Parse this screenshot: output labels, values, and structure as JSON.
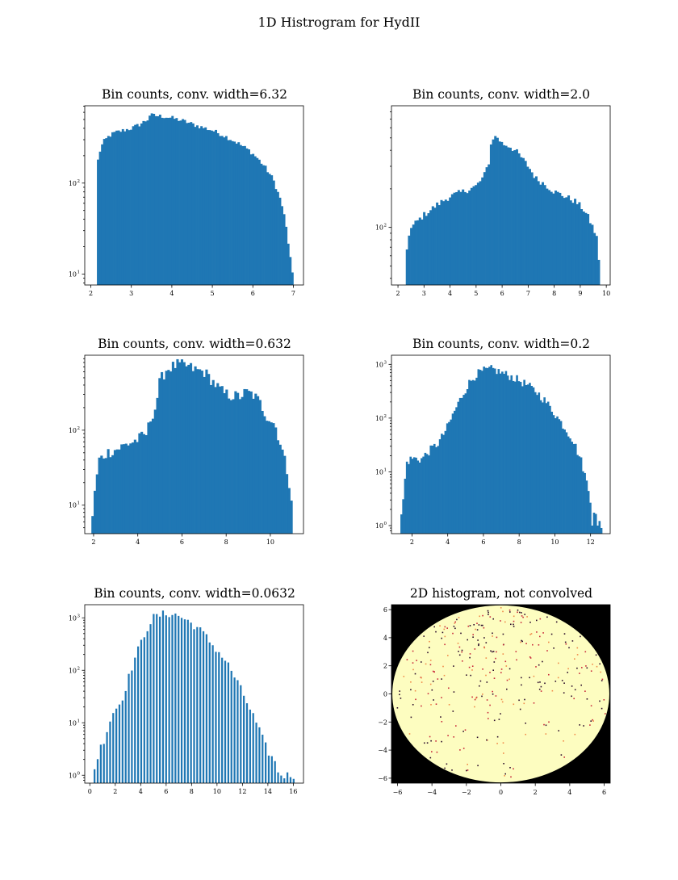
{
  "figure": {
    "title": "1D Histrogram for HydII"
  },
  "chart_data": [
    {
      "type": "bar",
      "title": "Bin counts, conv. width=6.32",
      "yscale": "log",
      "xlim": [
        1.85,
        7.25
      ],
      "ylim_exp": [
        0.88,
        2.85
      ],
      "x_ticks": [
        "2",
        "3",
        "4",
        "5",
        "6",
        "7"
      ],
      "y_ticks_exp": [
        1,
        2
      ],
      "bins": {
        "start": 2.15,
        "end": 7.0,
        "count": 95
      },
      "envelope": [
        [
          2.15,
          150
        ],
        [
          2.2,
          210
        ],
        [
          2.3,
          280
        ],
        [
          2.45,
          330
        ],
        [
          2.6,
          360
        ],
        [
          2.8,
          380
        ],
        [
          3.0,
          400
        ],
        [
          3.2,
          440
        ],
        [
          3.4,
          500
        ],
        [
          3.45,
          560
        ],
        [
          3.6,
          550
        ],
        [
          3.8,
          540
        ],
        [
          4.0,
          520
        ],
        [
          4.3,
          480
        ],
        [
          4.6,
          430
        ],
        [
          5.0,
          380
        ],
        [
          5.3,
          330
        ],
        [
          5.6,
          280
        ],
        [
          5.9,
          230
        ],
        [
          6.1,
          190
        ],
        [
          6.3,
          150
        ],
        [
          6.5,
          110
        ],
        [
          6.7,
          62
        ],
        [
          6.8,
          38
        ],
        [
          6.9,
          18
        ],
        [
          7.0,
          8
        ]
      ]
    },
    {
      "type": "bar",
      "title": "Bin counts, conv. width=2.0",
      "yscale": "log",
      "xlim": [
        1.75,
        10.15
      ],
      "ylim_exp": [
        1.55,
        2.95
      ],
      "x_ticks": [
        "2",
        "3",
        "4",
        "5",
        "6",
        "7",
        "8",
        "9",
        "10"
      ],
      "y_ticks_exp": [
        2
      ],
      "bins": {
        "start": 2.3,
        "end": 9.75,
        "count": 90
      },
      "envelope": [
        [
          2.3,
          40
        ],
        [
          2.35,
          75
        ],
        [
          2.45,
          95
        ],
        [
          2.7,
          110
        ],
        [
          3.0,
          125
        ],
        [
          3.5,
          150
        ],
        [
          4.0,
          175
        ],
        [
          4.5,
          190
        ],
        [
          5.0,
          210
        ],
        [
          5.3,
          250
        ],
        [
          5.5,
          330
        ],
        [
          5.6,
          500
        ],
        [
          5.8,
          510
        ],
        [
          6.0,
          450
        ],
        [
          6.3,
          430
        ],
        [
          6.6,
          380
        ],
        [
          7.0,
          300
        ],
        [
          7.3,
          240
        ],
        [
          7.6,
          220
        ],
        [
          8.0,
          190
        ],
        [
          8.4,
          175
        ],
        [
          8.8,
          160
        ],
        [
          9.1,
          140
        ],
        [
          9.3,
          120
        ],
        [
          9.5,
          98
        ],
        [
          9.65,
          80
        ],
        [
          9.75,
          45
        ]
      ]
    },
    {
      "type": "bar",
      "title": "Bin counts, conv. width=0.632",
      "yscale": "log",
      "xlim": [
        1.6,
        11.5
      ],
      "ylim_exp": [
        0.62,
        3.0
      ],
      "x_ticks": [
        "2",
        "4",
        "6",
        "8",
        "10"
      ],
      "y_ticks_exp": [
        1,
        2
      ],
      "bins": {
        "start": 1.9,
        "end": 11.0,
        "count": 90
      },
      "envelope": [
        [
          1.9,
          5
        ],
        [
          2.0,
          10
        ],
        [
          2.1,
          20
        ],
        [
          2.25,
          40
        ],
        [
          2.6,
          50
        ],
        [
          3.0,
          55
        ],
        [
          3.5,
          65
        ],
        [
          4.0,
          75
        ],
        [
          4.4,
          90
        ],
        [
          4.6,
          150
        ],
        [
          4.8,
          200
        ],
        [
          5.0,
          450
        ],
        [
          5.3,
          650
        ],
        [
          5.8,
          750
        ],
        [
          6.2,
          720
        ],
        [
          6.6,
          640
        ],
        [
          7.0,
          600
        ],
        [
          7.3,
          480
        ],
        [
          7.6,
          380
        ],
        [
          7.9,
          310
        ],
        [
          8.2,
          290
        ],
        [
          8.6,
          280
        ],
        [
          8.9,
          320
        ],
        [
          9.2,
          300
        ],
        [
          9.5,
          240
        ],
        [
          9.8,
          160
        ],
        [
          10.2,
          120
        ],
        [
          10.5,
          60
        ],
        [
          10.8,
          25
        ],
        [
          11.0,
          10
        ]
      ]
    },
    {
      "type": "bar",
      "title": "Bin counts, conv. width=0.2",
      "yscale": "log",
      "xlim": [
        0.85,
        13.1
      ],
      "ylim_exp": [
        -0.15,
        3.17
      ],
      "x_ticks": [
        "2",
        "4",
        "6",
        "8",
        "10",
        "12"
      ],
      "y_ticks_exp": [
        0,
        1,
        2,
        3
      ],
      "bins": {
        "start": 1.35,
        "end": 12.65,
        "count": 110
      },
      "envelope": [
        [
          1.35,
          1
        ],
        [
          1.5,
          3
        ],
        [
          1.7,
          15
        ],
        [
          2.0,
          18
        ],
        [
          2.5,
          17
        ],
        [
          3.0,
          25
        ],
        [
          3.5,
          35
        ],
        [
          4.0,
          70
        ],
        [
          4.4,
          140
        ],
        [
          4.8,
          260
        ],
        [
          5.2,
          450
        ],
        [
          5.6,
          650
        ],
        [
          6.0,
          760
        ],
        [
          6.5,
          820
        ],
        [
          7.0,
          700
        ],
        [
          7.5,
          600
        ],
        [
          8.0,
          500
        ],
        [
          8.5,
          400
        ],
        [
          9.0,
          300
        ],
        [
          9.5,
          200
        ],
        [
          10.0,
          120
        ],
        [
          10.5,
          70
        ],
        [
          11.0,
          40
        ],
        [
          11.5,
          15
        ],
        [
          11.8,
          6
        ],
        [
          12.0,
          3
        ],
        [
          12.3,
          1.5
        ],
        [
          12.6,
          1
        ]
      ]
    },
    {
      "type": "bar",
      "title": "Bin counts, conv. width=0.0632",
      "yscale": "log",
      "xlim": [
        -0.4,
        16.8
      ],
      "ylim_exp": [
        -0.15,
        3.25
      ],
      "x_ticks": [
        "0",
        "2",
        "4",
        "6",
        "8",
        "10",
        "12",
        "14",
        "16"
      ],
      "y_ticks_exp": [
        0,
        1,
        2,
        3
      ],
      "bins": {
        "start": 0.3,
        "end": 16.2,
        "count": 65
      },
      "envelope": [
        [
          0.3,
          1
        ],
        [
          0.8,
          3
        ],
        [
          1.2,
          5
        ],
        [
          1.8,
          15
        ],
        [
          2.5,
          25
        ],
        [
          3.0,
          60
        ],
        [
          3.5,
          150
        ],
        [
          4.0,
          300
        ],
        [
          4.5,
          600
        ],
        [
          5.0,
          1000
        ],
        [
          5.5,
          1100
        ],
        [
          6.0,
          1200
        ],
        [
          6.5,
          1200
        ],
        [
          7.0,
          1100
        ],
        [
          7.5,
          950
        ],
        [
          8.0,
          800
        ],
        [
          8.5,
          650
        ],
        [
          9.0,
          500
        ],
        [
          9.5,
          350
        ],
        [
          10.0,
          250
        ],
        [
          10.5,
          180
        ],
        [
          11.0,
          120
        ],
        [
          11.5,
          70
        ],
        [
          12.0,
          40
        ],
        [
          12.5,
          22
        ],
        [
          13.0,
          12
        ],
        [
          13.5,
          6
        ],
        [
          14.0,
          3
        ],
        [
          14.5,
          2
        ],
        [
          15.0,
          1
        ],
        [
          15.5,
          1
        ],
        [
          16.0,
          1
        ]
      ]
    },
    {
      "type": "heatmap",
      "title": "2D histogram, not convolved",
      "xlim": [
        -6.35,
        6.35
      ],
      "ylim": [
        -6.35,
        6.35
      ],
      "x_ticks": [
        "−6",
        "−4",
        "−2",
        "0",
        "2",
        "4",
        "6"
      ],
      "y_ticks": [
        "−6",
        "−4",
        "−2",
        "0",
        "2",
        "4",
        "6"
      ],
      "disk_radius": 6.3,
      "colors": {
        "background": "#000000",
        "fill": "#fdfdc0",
        "speck_dark": "#2a0a2a",
        "speck_red": "#c8283a",
        "speck_orange": "#f08a4a"
      }
    }
  ]
}
